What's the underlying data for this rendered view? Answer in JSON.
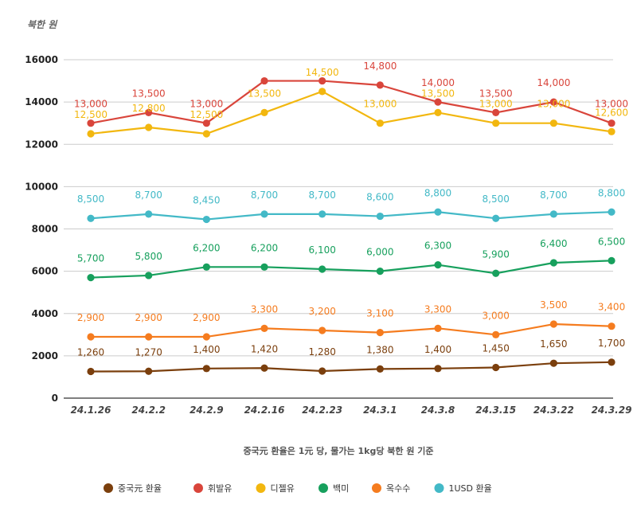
{
  "chart_data": {
    "type": "line",
    "unit_label": "북한 원",
    "note": "중국元 환율은 1元 당, 물가는 1kg당 북한 원 기준",
    "categories": [
      "24.1.26",
      "24.2.2",
      "24.2.9",
      "24.2.16",
      "24.2.23",
      "24.3.1",
      "24.3.8",
      "24.3.15",
      "24.3.22",
      "24.3.29"
    ],
    "ylim": [
      0,
      16000
    ],
    "yticks": [
      "0",
      "2000",
      "4000",
      "6000",
      "8000",
      "10000",
      "12000",
      "14000",
      "16000"
    ],
    "grid": true,
    "legend_position": "bottom",
    "series": [
      {
        "name": "중국元 환율",
        "color": "#7b3f0d",
        "values": [
          1260,
          1270,
          1400,
          1420,
          1280,
          1380,
          1400,
          1450,
          1650,
          1700
        ],
        "labels": [
          "1,260",
          "1,270",
          "1,400",
          "1,420",
          "1,280",
          "1,380",
          "1,400",
          "1,450",
          "1,650",
          "1,700"
        ]
      },
      {
        "name": "휘발유",
        "color": "#d9453b",
        "values": [
          13000,
          13500,
          13000,
          15000,
          15000,
          14800,
          14000,
          13500,
          14000,
          13000
        ],
        "labels": [
          "13,000",
          "13,500",
          "13,000",
          "",
          "",
          "14,800",
          "14,000",
          "13,500",
          "14,000",
          "13,000"
        ]
      },
      {
        "name": "디젤유",
        "color": "#f2b70f",
        "values": [
          12500,
          12800,
          12500,
          13500,
          14500,
          13000,
          13500,
          13000,
          13000,
          12600
        ],
        "labels": [
          "12,500",
          "12,800",
          "12,500",
          "13,500",
          "14,500",
          "13,000",
          "13,500",
          "13,000",
          "13,000",
          "12,600"
        ]
      },
      {
        "name": "백미",
        "color": "#17a05d",
        "values": [
          5700,
          5800,
          6200,
          6200,
          6100,
          6000,
          6300,
          5900,
          6400,
          6500
        ],
        "labels": [
          "5,700",
          "5,800",
          "6,200",
          "6,200",
          "6,100",
          "6,000",
          "6,300",
          "5,900",
          "6,400",
          "6,500"
        ]
      },
      {
        "name": "옥수수",
        "color": "#f57c1f",
        "values": [
          2900,
          2900,
          2900,
          3300,
          3200,
          3100,
          3300,
          3000,
          3500,
          3400
        ],
        "labels": [
          "2,900",
          "2,900",
          "2,900",
          "3,300",
          "3,200",
          "3,100",
          "3,300",
          "3,000",
          "3,500",
          "3,400"
        ]
      },
      {
        "name": "1USD 환율",
        "color": "#43b9c7",
        "values": [
          8500,
          8700,
          8450,
          8700,
          8700,
          8600,
          8800,
          8500,
          8700,
          8800
        ],
        "labels": [
          "8,500",
          "8,700",
          "8,450",
          "8,700",
          "8,700",
          "8,600",
          "8,800",
          "8,500",
          "8,700",
          "8,800"
        ]
      }
    ]
  }
}
